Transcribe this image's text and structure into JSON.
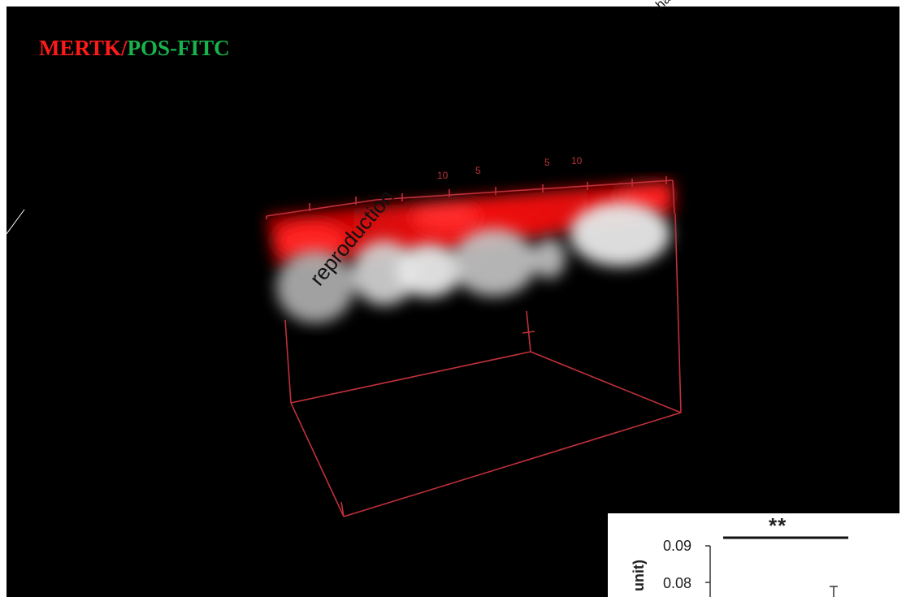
{
  "title": {
    "part1": "MERTK/",
    "part2": "POS-FITC",
    "color1": "#ff1a1a",
    "color2": "#19b34c"
  },
  "scene": {
    "box_color": "#d0323a",
    "ruler_top_labels": [
      "10",
      "5",
      "5",
      "10"
    ]
  },
  "watermark": {
    "text": "reproduction",
    "tail": "ha"
  },
  "inset": {
    "significance": "**",
    "y_label": "unit)",
    "y_ticks": [
      "0.09",
      "0.08"
    ]
  }
}
